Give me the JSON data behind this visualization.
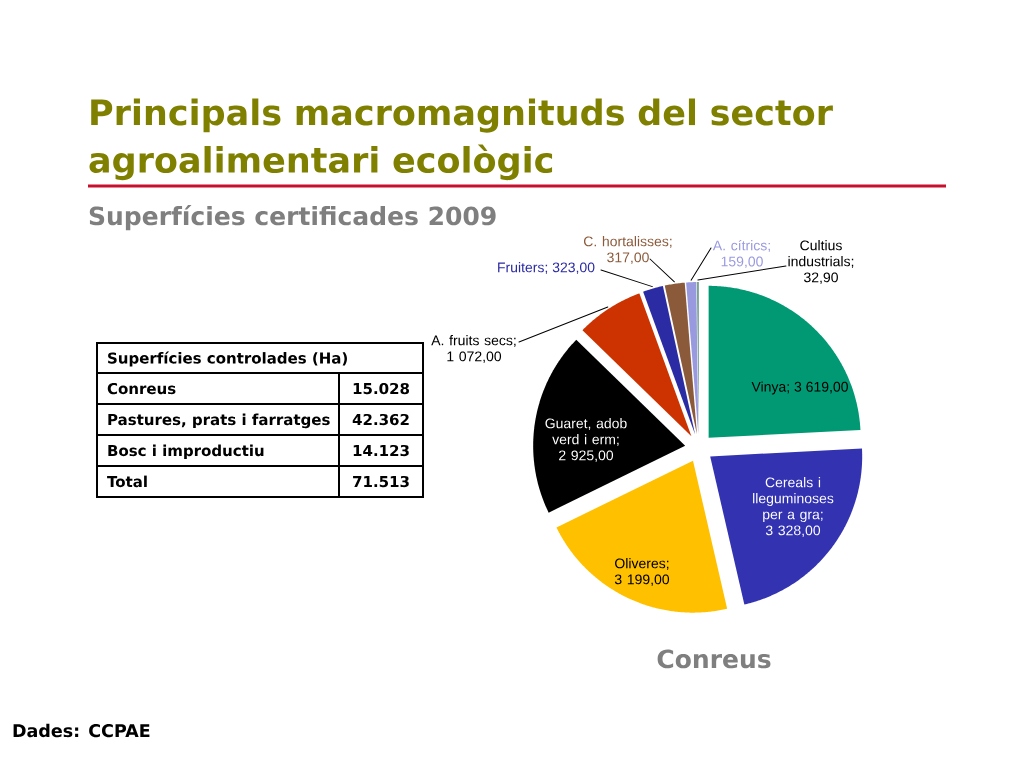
{
  "chart_data": [
    {
      "type": "pie",
      "title": "Principals macromagnituds del sector agroalimentari ecològic",
      "subtitle": "Superfícies certificades 2009",
      "categories": [
        null,
        null,
        null,
        null,
        null,
        null,
        null,
        null,
        null
      ],
      "values": [
        3619,
        3328,
        3199,
        2925,
        1072,
        323,
        317,
        159,
        32.9
      ],
      "value_labels": [
        "Vinya; 3 619,00",
        "Cereals i lleguminoses per a gra; 3 328,00",
        "Oliveres; 3 199,00",
        "Guaret, adob verd i erm; 2 925,00",
        "A. fruits secs; 1 072,00",
        "Fruiters; 323,00",
        "C. hortalisses; 317,00",
        "A. cítrics; 159,00",
        "Cultius industrials; 32,90"
      ],
      "colors": [
        "#009973",
        "#3333b2",
        "#ffc000",
        "#000000",
        "#cc3300",
        "#2b2ba3",
        "#8b5a3a",
        "#9999e0",
        "#77a38f"
      ],
      "annotations": [
        "Conreus",
        "Dades: CCPAE"
      ]
    },
    {
      "type": "other",
      "title": "Superfícies controlades (Ha)",
      "categories": [
        "Conreus",
        "Pastures, prats i farratges",
        "Bosc i improductiu",
        "Total"
      ],
      "values": [
        15028,
        42362,
        14123,
        71513
      ],
      "value_labels": [
        "15.028",
        "42.362",
        "14.123",
        "71.513"
      ]
    }
  ]
}
